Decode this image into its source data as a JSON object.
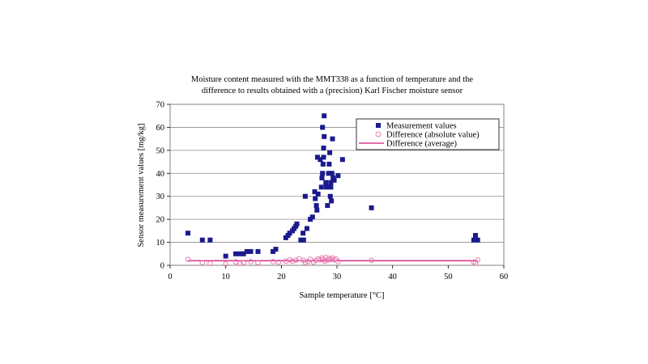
{
  "chart_data": {
    "type": "scatter",
    "title_lines": [
      "Moisture content measured with the MMT338 as a function of temperature and the",
      "difference to results obtained with a (precision) Karl Fischer moisture sensor"
    ],
    "xlabel": "Sample temperature [°C]",
    "ylabel": "Sensor measurement values [mg/kg]",
    "xlim": [
      0,
      60
    ],
    "ylim": [
      0,
      70
    ],
    "xticks": [
      0,
      10,
      20,
      30,
      40,
      50,
      60
    ],
    "yticks": [
      0,
      10,
      20,
      30,
      40,
      50,
      60,
      70
    ],
    "grid": "horizontal",
    "legend_position": "top-right",
    "series": [
      {
        "name": "Measurement values",
        "marker": "square",
        "color": "#1a1a8c",
        "points": [
          [
            3.2,
            14
          ],
          [
            5.8,
            11
          ],
          [
            7.2,
            11
          ],
          [
            10,
            4
          ],
          [
            11.8,
            5
          ],
          [
            12.6,
            5
          ],
          [
            13.2,
            5
          ],
          [
            13.8,
            6
          ],
          [
            14.5,
            6
          ],
          [
            15.8,
            6
          ],
          [
            18.5,
            6
          ],
          [
            19,
            7
          ],
          [
            20.8,
            12
          ],
          [
            21.2,
            13
          ],
          [
            21.5,
            14
          ],
          [
            22,
            15
          ],
          [
            22.3,
            16
          ],
          [
            22.6,
            17
          ],
          [
            22.8,
            18
          ],
          [
            23.5,
            11
          ],
          [
            24,
            11
          ],
          [
            23.9,
            14
          ],
          [
            24.3,
            30
          ],
          [
            24.6,
            16
          ],
          [
            25.2,
            20
          ],
          [
            25.6,
            21
          ],
          [
            26,
            32
          ],
          [
            26.1,
            29
          ],
          [
            26.3,
            26
          ],
          [
            26.4,
            24
          ],
          [
            26.6,
            31
          ],
          [
            26.5,
            47
          ],
          [
            27,
            46
          ],
          [
            27.2,
            34
          ],
          [
            27.3,
            38
          ],
          [
            27.4,
            40
          ],
          [
            27.5,
            44
          ],
          [
            27.6,
            51
          ],
          [
            27.7,
            56
          ],
          [
            27.4,
            60
          ],
          [
            27.7,
            65
          ],
          [
            27.6,
            47
          ],
          [
            28,
            36
          ],
          [
            28.1,
            34
          ],
          [
            28.3,
            26
          ],
          [
            28.5,
            40
          ],
          [
            28.6,
            44
          ],
          [
            28.7,
            49
          ],
          [
            28.8,
            30
          ],
          [
            28.9,
            34
          ],
          [
            28.9,
            36
          ],
          [
            29,
            28
          ],
          [
            29.1,
            40
          ],
          [
            29.2,
            55
          ],
          [
            29.3,
            38
          ],
          [
            29.5,
            37
          ],
          [
            30.2,
            39
          ],
          [
            31,
            46
          ],
          [
            36.2,
            25
          ],
          [
            54.6,
            11
          ],
          [
            54.9,
            13
          ],
          [
            55.3,
            11
          ]
        ]
      },
      {
        "name": "Difference (absolute value)",
        "marker": "circle-open",
        "color": "#e87fb4",
        "points": [
          [
            3.2,
            2.6
          ],
          [
            5.8,
            1.2
          ],
          [
            7.2,
            0.8
          ],
          [
            10,
            0.6
          ],
          [
            11.8,
            1.5
          ],
          [
            12.6,
            0.8
          ],
          [
            13.2,
            1.2
          ],
          [
            14.5,
            1.6
          ],
          [
            15.8,
            1.2
          ],
          [
            18.5,
            1.6
          ],
          [
            19.5,
            1.4
          ],
          [
            20.8,
            1.8
          ],
          [
            21.5,
            2.4
          ],
          [
            22,
            1.8
          ],
          [
            22.6,
            2.2
          ],
          [
            23.2,
            2.8
          ],
          [
            24,
            2.2
          ],
          [
            24.3,
            1.2
          ],
          [
            24.8,
            1.6
          ],
          [
            25.2,
            2.6
          ],
          [
            25.8,
            1.4
          ],
          [
            26.2,
            2.2
          ],
          [
            26.6,
            2.8
          ],
          [
            27,
            2.4
          ],
          [
            27.3,
            3.2
          ],
          [
            27.6,
            2.6
          ],
          [
            27.8,
            1.8
          ],
          [
            28,
            3.4
          ],
          [
            28.3,
            2.2
          ],
          [
            28.6,
            3
          ],
          [
            28.9,
            2.6
          ],
          [
            29.2,
            3.2
          ],
          [
            29.5,
            2.4
          ],
          [
            29.8,
            2.8
          ],
          [
            30.2,
            1.6
          ],
          [
            36.2,
            2.2
          ],
          [
            54.6,
            1.4
          ],
          [
            54.9,
            0.8
          ],
          [
            55.3,
            2.4
          ]
        ]
      },
      {
        "name": "Difference (average)",
        "marker": "line",
        "color": "#d63f8e",
        "points": [
          [
            3.2,
            2.0
          ],
          [
            55.3,
            2.0
          ]
        ]
      }
    ]
  }
}
